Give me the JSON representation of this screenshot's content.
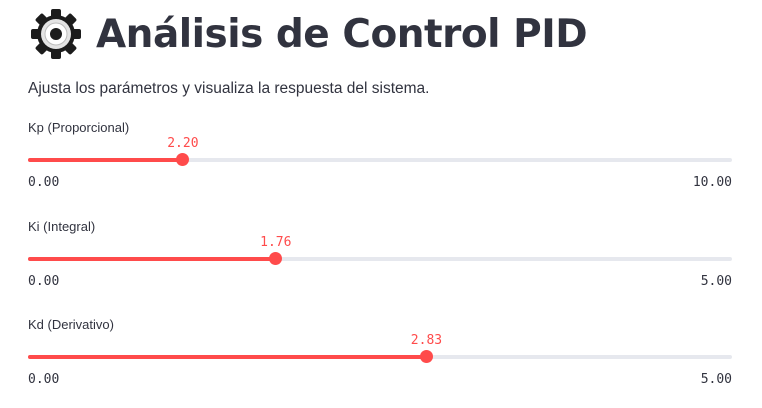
{
  "header": {
    "title": "Análisis de Control PID",
    "icon": "gear-icon"
  },
  "subtitle": "Ajusta los parámetros y visualiza la respuesta del sistema.",
  "accent_color": "#ff4b4b",
  "sliders": [
    {
      "label": "Kp (Proporcional)",
      "value": 2.2,
      "value_text": "2.20",
      "min": 0,
      "max": 10,
      "min_text": "0.00",
      "max_text": "10.00"
    },
    {
      "label": "Ki (Integral)",
      "value": 1.76,
      "value_text": "1.76",
      "min": 0,
      "max": 5,
      "min_text": "0.00",
      "max_text": "5.00"
    },
    {
      "label": "Kd (Derivativo)",
      "value": 2.83,
      "value_text": "2.83",
      "min": 0,
      "max": 5,
      "min_text": "0.00",
      "max_text": "5.00"
    }
  ]
}
